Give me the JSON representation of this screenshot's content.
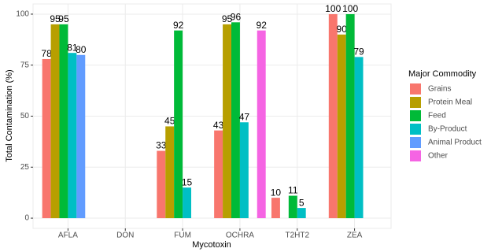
{
  "chart_data": {
    "type": "bar",
    "x_label": "Mycotoxin",
    "y_label": "Total Contamination (%)",
    "legend_title": "Major Commodity",
    "categories": [
      "AFLA",
      "DON",
      "FUM",
      "OCHRA",
      "T2HT2",
      "ZEA"
    ],
    "series": [
      {
        "name": "Grains",
        "color": "#F8766D",
        "values": [
          78,
          null,
          33,
          43,
          10,
          100
        ]
      },
      {
        "name": "Protein Meal",
        "color": "#B79F00",
        "values": [
          95,
          null,
          45,
          95,
          null,
          90
        ]
      },
      {
        "name": "Feed",
        "color": "#00BA38",
        "values": [
          95,
          null,
          92,
          96,
          11,
          100
        ]
      },
      {
        "name": "By-Product",
        "color": "#00BFC4",
        "values": [
          81,
          null,
          15,
          47,
          5,
          79
        ]
      },
      {
        "name": "Animal Product",
        "color": "#619CFF",
        "values": [
          80,
          null,
          null,
          null,
          null,
          null
        ]
      },
      {
        "name": "Other",
        "color": "#F564E3",
        "values": [
          null,
          null,
          null,
          92,
          null,
          null
        ]
      }
    ],
    "ylim": [
      -5,
      105
    ],
    "yticks": [
      0,
      25,
      50,
      75,
      100
    ],
    "grid": true,
    "legend": "right"
  }
}
